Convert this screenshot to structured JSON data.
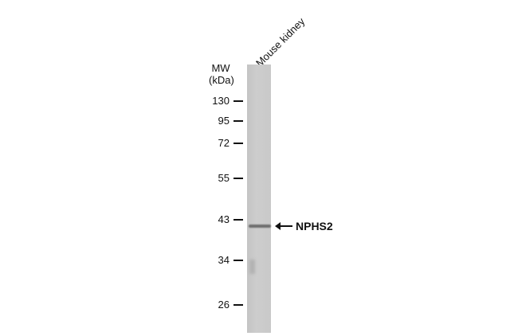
{
  "lane_label": "Mouse kidney",
  "mw_header": {
    "line1": "MW",
    "line2": "(kDa)"
  },
  "markers": [
    "130",
    "95",
    "72",
    "55",
    "43",
    "34",
    "26"
  ],
  "target": {
    "label": "NPHS2",
    "arrow_icon": "left-arrow-icon"
  }
}
